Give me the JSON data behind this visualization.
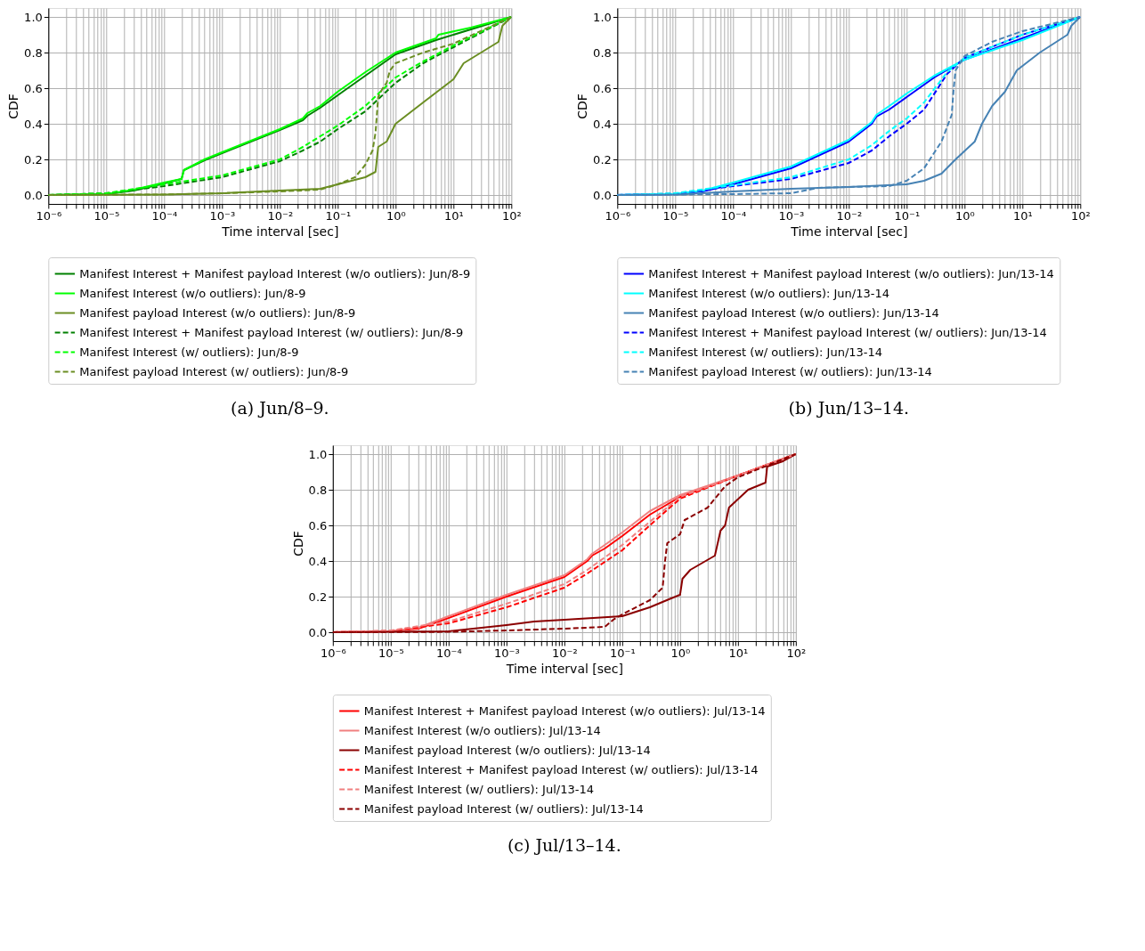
{
  "chart_data": [
    {
      "type": "line",
      "title": "(a) Jun/8–9.",
      "xlabel": "Time interval [sec]",
      "ylabel": "CDF",
      "log": "x",
      "grid": true,
      "legend": "bottom",
      "xlim": [
        1e-06,
        100
      ],
      "ylim": [
        -0.05,
        1.05
      ],
      "xticks": [
        {
          "value": 1e-06,
          "label": "10⁻⁶"
        },
        {
          "value": 1e-05,
          "label": "10⁻⁵"
        },
        {
          "value": 0.0001,
          "label": "10⁻⁴"
        },
        {
          "value": 0.001,
          "label": "10⁻³"
        },
        {
          "value": 0.01,
          "label": "10⁻²"
        },
        {
          "value": 0.1,
          "label": "10⁻¹"
        },
        {
          "value": 1,
          "label": "10⁰"
        },
        {
          "value": 10,
          "label": "10¹"
        },
        {
          "value": 100,
          "label": "10²"
        }
      ],
      "yticks": [
        {
          "value": 0,
          "label": "0.0"
        },
        {
          "value": 0.2,
          "label": "0.2"
        },
        {
          "value": 0.4,
          "label": "0.4"
        },
        {
          "value": 0.6,
          "label": "0.6"
        },
        {
          "value": 0.8,
          "label": "0.8"
        },
        {
          "value": 1,
          "label": "1.0"
        }
      ],
      "series": [
        {
          "name": "Manifest Interest + Manifest payload Interest (w/o outliers): Jun/8-9",
          "color": "#008000",
          "line_style": "solid",
          "x": [
            1e-06,
            1e-05,
            3e-05,
            0.0001,
            0.0002,
            0.00022,
            0.0005,
            0.001,
            0.01,
            0.025,
            0.03,
            0.05,
            0.1,
            0.3,
            1,
            5,
            20,
            100
          ],
          "values": [
            0,
            0.005,
            0.025,
            0.065,
            0.09,
            0.14,
            0.195,
            0.235,
            0.365,
            0.42,
            0.445,
            0.49,
            0.56,
            0.67,
            0.79,
            0.87,
            0.93,
            1
          ]
        },
        {
          "name": "Manifest Interest (w/o outliers): Jun/8-9",
          "color": "#00ff00",
          "line_style": "solid",
          "x": [
            1e-06,
            1e-05,
            3e-05,
            0.0001,
            0.0002,
            0.00022,
            0.0005,
            0.001,
            0.01,
            0.025,
            0.03,
            0.05,
            0.1,
            0.3,
            1,
            5,
            5.5,
            20,
            100
          ],
          "values": [
            0,
            0.005,
            0.03,
            0.07,
            0.09,
            0.14,
            0.2,
            0.24,
            0.37,
            0.43,
            0.46,
            0.5,
            0.58,
            0.69,
            0.8,
            0.88,
            0.9,
            0.94,
            1
          ]
        },
        {
          "name": "Manifest payload Interest (w/o outliers): Jun/8-9",
          "color": "#6b8e23",
          "line_style": "solid",
          "x": [
            1e-06,
            0.0001,
            0.001,
            0.01,
            0.05,
            0.1,
            0.3,
            0.45,
            0.5,
            0.7,
            1,
            3,
            10,
            15,
            30,
            60,
            70,
            100
          ],
          "values": [
            0,
            0.003,
            0.01,
            0.025,
            0.035,
            0.06,
            0.1,
            0.13,
            0.27,
            0.3,
            0.4,
            0.52,
            0.65,
            0.74,
            0.8,
            0.86,
            0.95,
            1
          ]
        },
        {
          "name": "Manifest Interest + Manifest payload Interest (w/ outliers): Jun/8-9",
          "color": "#008000",
          "line_style": "dashed",
          "x": [
            1e-06,
            1e-05,
            0.0001,
            0.001,
            0.01,
            0.025,
            0.05,
            0.1,
            0.3,
            1,
            3,
            10,
            100
          ],
          "values": [
            0,
            0.01,
            0.05,
            0.1,
            0.19,
            0.25,
            0.3,
            0.37,
            0.47,
            0.63,
            0.74,
            0.83,
            1
          ]
        },
        {
          "name": "Manifest Interest (w/ outliers): Jun/8-9",
          "color": "#00ff00",
          "line_style": "dashed",
          "x": [
            1e-06,
            1e-05,
            0.0001,
            0.001,
            0.01,
            0.025,
            0.05,
            0.1,
            0.3,
            1,
            3,
            10,
            100
          ],
          "values": [
            0,
            0.01,
            0.06,
            0.11,
            0.2,
            0.27,
            0.33,
            0.39,
            0.5,
            0.66,
            0.75,
            0.84,
            1
          ]
        },
        {
          "name": "Manifest payload Interest (w/ outliers): Jun/8-9",
          "color": "#6b8e23",
          "line_style": "dashed",
          "x": [
            1e-06,
            0.0001,
            0.001,
            0.01,
            0.05,
            0.1,
            0.2,
            0.3,
            0.4,
            0.45,
            0.5,
            0.6,
            0.7,
            0.8,
            1,
            3,
            10,
            100
          ],
          "values": [
            0,
            0.003,
            0.01,
            0.02,
            0.03,
            0.06,
            0.1,
            0.17,
            0.25,
            0.35,
            0.55,
            0.6,
            0.63,
            0.7,
            0.74,
            0.8,
            0.85,
            1
          ]
        }
      ]
    },
    {
      "type": "line",
      "title": "(b) Jun/13–14.",
      "xlabel": "Time interval [sec]",
      "ylabel": "CDF",
      "log": "x",
      "grid": true,
      "legend": "bottom",
      "xlim": [
        1e-06,
        100
      ],
      "ylim": [
        -0.05,
        1.05
      ],
      "xticks": [
        {
          "value": 1e-06,
          "label": "10⁻⁶"
        },
        {
          "value": 1e-05,
          "label": "10⁻⁵"
        },
        {
          "value": 0.0001,
          "label": "10⁻⁴"
        },
        {
          "value": 0.001,
          "label": "10⁻³"
        },
        {
          "value": 0.01,
          "label": "10⁻²"
        },
        {
          "value": 0.1,
          "label": "10⁻¹"
        },
        {
          "value": 1,
          "label": "10⁰"
        },
        {
          "value": 10,
          "label": "10¹"
        },
        {
          "value": 100,
          "label": "10²"
        }
      ],
      "yticks": [
        {
          "value": 0,
          "label": "0.0"
        },
        {
          "value": 0.2,
          "label": "0.2"
        },
        {
          "value": 0.4,
          "label": "0.4"
        },
        {
          "value": 0.6,
          "label": "0.6"
        },
        {
          "value": 0.8,
          "label": "0.8"
        },
        {
          "value": 1,
          "label": "1.0"
        }
      ],
      "series": [
        {
          "name": "Manifest Interest + Manifest payload Interest (w/o outliers): Jun/13-14",
          "color": "#0000ff",
          "line_style": "solid",
          "x": [
            1e-06,
            1e-05,
            3e-05,
            0.0001,
            0.001,
            0.01,
            0.025,
            0.03,
            0.05,
            0.1,
            0.3,
            1,
            10,
            100
          ],
          "values": [
            0,
            0.005,
            0.02,
            0.06,
            0.15,
            0.3,
            0.4,
            0.44,
            0.48,
            0.55,
            0.66,
            0.76,
            0.88,
            1
          ]
        },
        {
          "name": "Manifest Interest (w/o outliers): Jun/13-14",
          "color": "#00ffff",
          "line_style": "solid",
          "x": [
            1e-06,
            1e-05,
            3e-05,
            0.0001,
            0.001,
            0.01,
            0.025,
            0.03,
            0.05,
            0.1,
            0.3,
            1,
            10,
            100
          ],
          "values": [
            0,
            0.006,
            0.025,
            0.07,
            0.16,
            0.31,
            0.41,
            0.45,
            0.5,
            0.57,
            0.67,
            0.76,
            0.87,
            1
          ]
        },
        {
          "name": "Manifest payload Interest (w/o outliers): Jun/13-14",
          "color": "#4682b4",
          "line_style": "solid",
          "x": [
            1e-06,
            1e-05,
            0.0001,
            0.001,
            0.01,
            0.1,
            0.2,
            0.4,
            0.7,
            1.5,
            2,
            3,
            5,
            8,
            20,
            60,
            70,
            100
          ],
          "values": [
            0,
            0.002,
            0.02,
            0.035,
            0.045,
            0.06,
            0.08,
            0.12,
            0.2,
            0.3,
            0.4,
            0.5,
            0.58,
            0.7,
            0.8,
            0.9,
            0.95,
            1
          ]
        },
        {
          "name": "Manifest Interest + Manifest payload Interest (w/ outliers): Jun/13-14",
          "color": "#0000ff",
          "line_style": "dashed",
          "x": [
            1e-06,
            1e-05,
            0.0001,
            0.001,
            0.01,
            0.025,
            0.05,
            0.1,
            0.2,
            0.5,
            1,
            10,
            100
          ],
          "values": [
            0,
            0.008,
            0.05,
            0.09,
            0.18,
            0.25,
            0.33,
            0.4,
            0.48,
            0.68,
            0.77,
            0.9,
            1
          ]
        },
        {
          "name": "Manifest Interest (w/ outliers): Jun/13-14",
          "color": "#00ffff",
          "line_style": "dashed",
          "x": [
            1e-06,
            1e-05,
            0.0001,
            0.001,
            0.01,
            0.025,
            0.05,
            0.1,
            0.2,
            0.5,
            1,
            10,
            100
          ],
          "values": [
            0,
            0.01,
            0.055,
            0.1,
            0.2,
            0.28,
            0.36,
            0.43,
            0.52,
            0.69,
            0.77,
            0.9,
            1
          ]
        },
        {
          "name": "Manifest payload Interest (w/ outliers): Jun/13-14",
          "color": "#4682b4",
          "line_style": "dashed",
          "x": [
            1e-06,
            0.0001,
            0.001,
            0.003,
            0.01,
            0.05,
            0.1,
            0.2,
            0.4,
            0.6,
            0.65,
            0.7,
            1,
            3,
            10,
            100
          ],
          "values": [
            0,
            0.005,
            0.01,
            0.04,
            0.045,
            0.05,
            0.08,
            0.15,
            0.3,
            0.45,
            0.6,
            0.7,
            0.78,
            0.86,
            0.92,
            1
          ]
        }
      ]
    },
    {
      "type": "line",
      "title": "(c) Jul/13–14.",
      "xlabel": "Time interval [sec]",
      "ylabel": "CDF",
      "log": "x",
      "grid": true,
      "legend": "bottom",
      "xlim": [
        1e-06,
        100
      ],
      "ylim": [
        -0.05,
        1.05
      ],
      "xticks": [
        {
          "value": 1e-06,
          "label": "10⁻⁶"
        },
        {
          "value": 1e-05,
          "label": "10⁻⁵"
        },
        {
          "value": 0.0001,
          "label": "10⁻⁴"
        },
        {
          "value": 0.001,
          "label": "10⁻³"
        },
        {
          "value": 0.01,
          "label": "10⁻²"
        },
        {
          "value": 0.1,
          "label": "10⁻¹"
        },
        {
          "value": 1,
          "label": "10⁰"
        },
        {
          "value": 10,
          "label": "10¹"
        },
        {
          "value": 100,
          "label": "10²"
        }
      ],
      "yticks": [
        {
          "value": 0,
          "label": "0.0"
        },
        {
          "value": 0.2,
          "label": "0.2"
        },
        {
          "value": 0.4,
          "label": "0.4"
        },
        {
          "value": 0.6,
          "label": "0.6"
        },
        {
          "value": 0.8,
          "label": "0.8"
        },
        {
          "value": 1,
          "label": "1.0"
        }
      ],
      "series": [
        {
          "name": "Manifest Interest + Manifest payload Interest (w/o outliers): Jul/13-14",
          "color": "#ff0000",
          "line_style": "solid",
          "x": [
            1e-06,
            1e-05,
            3e-05,
            0.0001,
            0.001,
            0.01,
            0.025,
            0.03,
            0.05,
            0.1,
            0.3,
            1,
            10,
            100
          ],
          "values": [
            0,
            0.005,
            0.02,
            0.08,
            0.2,
            0.31,
            0.4,
            0.43,
            0.47,
            0.54,
            0.66,
            0.76,
            0.88,
            1
          ]
        },
        {
          "name": "Manifest Interest (w/o outliers): Jul/13-14",
          "color": "#f08080",
          "line_style": "solid",
          "x": [
            1e-06,
            1e-05,
            3e-05,
            0.0001,
            0.001,
            0.01,
            0.025,
            0.03,
            0.05,
            0.1,
            0.3,
            1,
            10,
            100
          ],
          "values": [
            0,
            0.006,
            0.025,
            0.09,
            0.21,
            0.32,
            0.41,
            0.44,
            0.49,
            0.56,
            0.68,
            0.77,
            0.88,
            1
          ]
        },
        {
          "name": "Manifest payload Interest (w/o outliers): Jul/13-14",
          "color": "#8b0000",
          "line_style": "solid",
          "x": [
            1e-06,
            0.0001,
            0.001,
            0.003,
            0.01,
            0.1,
            0.3,
            0.7,
            1,
            1.1,
            1.5,
            4,
            5,
            6,
            7,
            15,
            30,
            32,
            60,
            100
          ],
          "values": [
            0,
            0.005,
            0.04,
            0.06,
            0.07,
            0.09,
            0.14,
            0.19,
            0.21,
            0.3,
            0.35,
            0.43,
            0.57,
            0.6,
            0.7,
            0.8,
            0.84,
            0.93,
            0.96,
            1
          ]
        },
        {
          "name": "Manifest Interest + Manifest payload Interest (w/ outliers): Jul/13-14",
          "color": "#ff0000",
          "line_style": "dashed",
          "x": [
            1e-06,
            1e-05,
            0.0001,
            0.001,
            0.01,
            0.025,
            0.1,
            0.3,
            1,
            10,
            100
          ],
          "values": [
            0,
            0.008,
            0.05,
            0.14,
            0.25,
            0.33,
            0.46,
            0.6,
            0.75,
            0.88,
            1
          ]
        },
        {
          "name": "Manifest Interest (w/ outliers): Jul/13-14",
          "color": "#f08080",
          "line_style": "dashed",
          "x": [
            1e-06,
            1e-05,
            0.0001,
            0.001,
            0.01,
            0.025,
            0.1,
            0.3,
            1,
            10,
            100
          ],
          "values": [
            0,
            0.01,
            0.06,
            0.16,
            0.27,
            0.35,
            0.49,
            0.62,
            0.76,
            0.88,
            1
          ]
        },
        {
          "name": "Manifest payload Interest (w/ outliers): Jul/13-14",
          "color": "#8b0000",
          "line_style": "dashed",
          "x": [
            1e-06,
            0.0001,
            0.001,
            0.01,
            0.05,
            0.07,
            0.1,
            0.3,
            0.5,
            0.55,
            0.6,
            1,
            1.2,
            3,
            6,
            10,
            100
          ],
          "values": [
            0,
            0.002,
            0.01,
            0.02,
            0.03,
            0.07,
            0.1,
            0.18,
            0.25,
            0.4,
            0.5,
            0.55,
            0.63,
            0.7,
            0.82,
            0.87,
            1
          ]
        }
      ]
    }
  ]
}
